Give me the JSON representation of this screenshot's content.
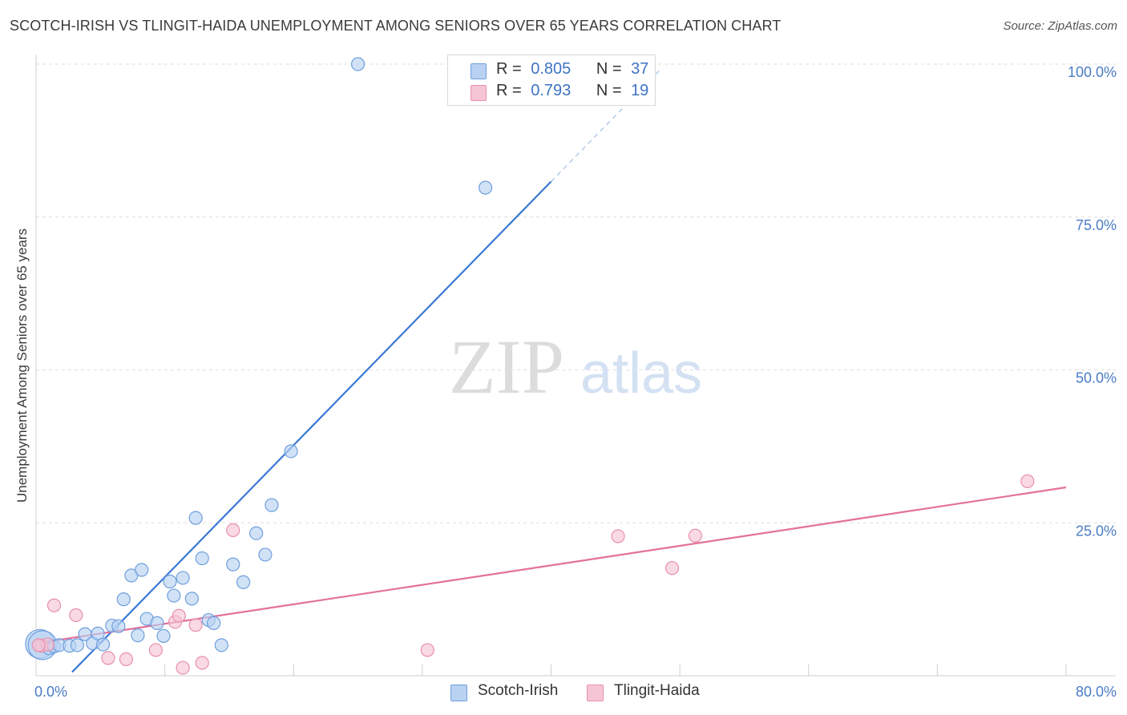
{
  "title": "SCOTCH-IRISH VS TLINGIT-HAIDA UNEMPLOYMENT AMONG SENIORS OVER 65 YEARS CORRELATION CHART",
  "source": "Source: ZipAtlas.com",
  "watermark": {
    "zip": "ZIP",
    "atlas": "atlas"
  },
  "colors": {
    "blue": "#3a78d4",
    "blue_fill": "#b9d2f2",
    "pink": "#e3709a",
    "pink_fill": "#f6c5d5",
    "axis_label": "#4a7cc4"
  },
  "legend": [
    {
      "swatch": "blue",
      "r_label": "R =",
      "r_value": "0.805",
      "n_label": "N =",
      "n_value": "37"
    },
    {
      "swatch": "pink",
      "r_label": "R =",
      "r_value": "0.793",
      "n_label": "N =",
      "n_value": "19"
    }
  ],
  "chart_data": {
    "type": "scatter",
    "title": "SCOTCH-IRISH VS TLINGIT-HAIDA UNEMPLOYMENT AMONG SENIORS OVER 65 YEARS CORRELATION CHART",
    "xlabel": "",
    "ylabel": "Unemployment Among Seniors over 65 years",
    "xlim": [
      0,
      80
    ],
    "ylim": [
      0,
      100
    ],
    "x_tick_labels": [
      "0.0%",
      "80.0%"
    ],
    "y_ticks": [
      25,
      50,
      75,
      100
    ],
    "y_tick_labels": [
      "25.0%",
      "50.0%",
      "75.0%",
      "100.0%"
    ],
    "grid": true,
    "series": [
      {
        "name": "Scotch-Irish",
        "color": "blue",
        "points": [
          {
            "x": 0.3,
            "y": 5.2,
            "size": "large"
          },
          {
            "x": 0.5,
            "y": 5.0,
            "size": "large"
          },
          {
            "x": 1.0,
            "y": 4.5,
            "size": "normal"
          },
          {
            "x": 1.4,
            "y": 4.8,
            "size": "normal"
          },
          {
            "x": 1.8,
            "y": 5.0,
            "size": "normal"
          },
          {
            "x": 2.6,
            "y": 4.9,
            "size": "normal"
          },
          {
            "x": 3.2,
            "y": 5.0,
            "size": "normal"
          },
          {
            "x": 3.8,
            "y": 6.8,
            "size": "normal"
          },
          {
            "x": 4.4,
            "y": 5.3,
            "size": "normal"
          },
          {
            "x": 4.8,
            "y": 6.9,
            "size": "normal"
          },
          {
            "x": 5.2,
            "y": 5.1,
            "size": "normal"
          },
          {
            "x": 5.9,
            "y": 8.2,
            "size": "normal"
          },
          {
            "x": 6.4,
            "y": 8.1,
            "size": "normal"
          },
          {
            "x": 6.8,
            "y": 12.5,
            "size": "normal"
          },
          {
            "x": 7.4,
            "y": 16.4,
            "size": "normal"
          },
          {
            "x": 7.9,
            "y": 6.6,
            "size": "normal"
          },
          {
            "x": 8.2,
            "y": 17.3,
            "size": "normal"
          },
          {
            "x": 8.6,
            "y": 9.3,
            "size": "normal"
          },
          {
            "x": 9.4,
            "y": 8.6,
            "size": "normal"
          },
          {
            "x": 9.9,
            "y": 6.5,
            "size": "normal"
          },
          {
            "x": 10.4,
            "y": 15.4,
            "size": "normal"
          },
          {
            "x": 10.7,
            "y": 13.1,
            "size": "normal"
          },
          {
            "x": 11.4,
            "y": 16.0,
            "size": "normal"
          },
          {
            "x": 12.1,
            "y": 12.6,
            "size": "normal"
          },
          {
            "x": 12.4,
            "y": 25.8,
            "size": "normal"
          },
          {
            "x": 12.9,
            "y": 19.2,
            "size": "normal"
          },
          {
            "x": 13.4,
            "y": 9.1,
            "size": "normal"
          },
          {
            "x": 13.8,
            "y": 8.6,
            "size": "normal"
          },
          {
            "x": 14.4,
            "y": 5.0,
            "size": "normal"
          },
          {
            "x": 15.3,
            "y": 18.2,
            "size": "normal"
          },
          {
            "x": 16.1,
            "y": 15.3,
            "size": "normal"
          },
          {
            "x": 17.1,
            "y": 23.3,
            "size": "normal"
          },
          {
            "x": 17.8,
            "y": 19.8,
            "size": "normal"
          },
          {
            "x": 18.3,
            "y": 27.9,
            "size": "normal"
          },
          {
            "x": 19.8,
            "y": 36.7,
            "size": "normal"
          },
          {
            "x": 25.0,
            "y": 100.0,
            "size": "normal"
          },
          {
            "x": 34.9,
            "y": 79.8,
            "size": "normal"
          }
        ],
        "trendline": {
          "x1": 2.8,
          "y1": 0.6,
          "x2": 40.0,
          "y2": 80.8,
          "dashed_to_x": 48.5
        }
      },
      {
        "name": "Tlingit-Haida",
        "color": "pink",
        "points": [
          {
            "x": 0.4,
            "y": 4.9,
            "size": "normal"
          },
          {
            "x": 0.9,
            "y": 5.1,
            "size": "normal"
          },
          {
            "x": 1.4,
            "y": 11.5,
            "size": "normal"
          },
          {
            "x": 3.1,
            "y": 9.9,
            "size": "normal"
          },
          {
            "x": 5.6,
            "y": 2.9,
            "size": "normal"
          },
          {
            "x": 7.0,
            "y": 2.7,
            "size": "normal"
          },
          {
            "x": 9.3,
            "y": 4.2,
            "size": "normal"
          },
          {
            "x": 10.8,
            "y": 8.8,
            "size": "normal"
          },
          {
            "x": 11.1,
            "y": 9.8,
            "size": "normal"
          },
          {
            "x": 11.4,
            "y": 1.3,
            "size": "normal"
          },
          {
            "x": 12.4,
            "y": 8.3,
            "size": "normal"
          },
          {
            "x": 12.9,
            "y": 2.1,
            "size": "normal"
          },
          {
            "x": 15.3,
            "y": 23.8,
            "size": "normal"
          },
          {
            "x": 30.4,
            "y": 4.2,
            "size": "normal"
          },
          {
            "x": 45.2,
            "y": 22.8,
            "size": "normal"
          },
          {
            "x": 49.4,
            "y": 17.6,
            "size": "normal"
          },
          {
            "x": 51.2,
            "y": 22.9,
            "size": "normal"
          },
          {
            "x": 77.0,
            "y": 31.8,
            "size": "normal"
          },
          {
            "x": 0.2,
            "y": 5.0,
            "size": "normal"
          }
        ],
        "trendline": {
          "x1": 0.0,
          "y1": 5.3,
          "x2": 80.0,
          "y2": 30.8
        }
      }
    ]
  }
}
